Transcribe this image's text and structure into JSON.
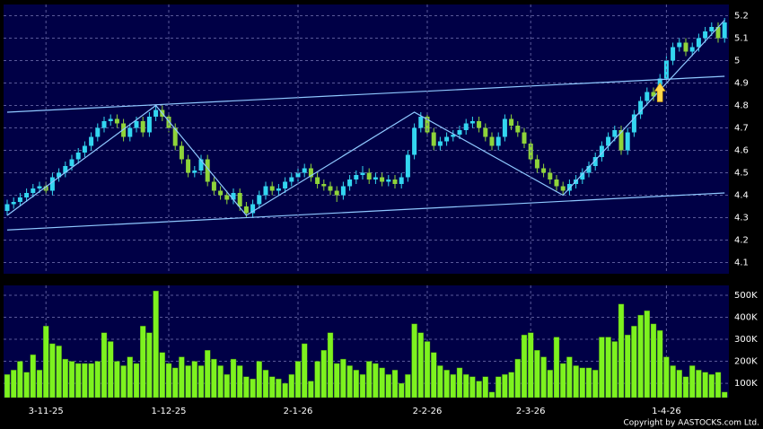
{
  "chart_data": [
    {
      "type": "candlestick",
      "up_color": "#33d6f0",
      "down_color": "#8fd43a",
      "grid": true,
      "ylim": [
        4.05,
        5.25
      ],
      "yticks": [
        4.1,
        4.2,
        4.3,
        4.4,
        4.5,
        4.6,
        4.7,
        4.8,
        4.9,
        5,
        5.1,
        5.2
      ],
      "series": [
        {
          "name": "open",
          "values": [
            4.33,
            4.36,
            4.37,
            4.39,
            4.41,
            4.43,
            4.44,
            4.42,
            4.48,
            4.5,
            4.53,
            4.56,
            4.59,
            4.62,
            4.66,
            4.7,
            4.73,
            4.74,
            4.72,
            4.66,
            4.7,
            4.73,
            4.68,
            4.75,
            4.78,
            4.75,
            4.7,
            4.62,
            4.56,
            4.5,
            4.51,
            4.56,
            4.46,
            4.42,
            4.4,
            4.38,
            4.41,
            4.35,
            4.32,
            4.36,
            4.4,
            4.44,
            4.42,
            4.43,
            4.46,
            4.48,
            4.5,
            4.52,
            4.48,
            4.45,
            4.44,
            4.42,
            4.4,
            4.44,
            4.47,
            4.49,
            4.5,
            4.47,
            4.48,
            4.46,
            4.47,
            4.45,
            4.48,
            4.58,
            4.7,
            4.75,
            4.68,
            4.62,
            4.64,
            4.66,
            4.67,
            4.69,
            4.72,
            4.73,
            4.7,
            4.66,
            4.62,
            4.66,
            4.74,
            4.71,
            4.68,
            4.63,
            4.56,
            4.52,
            4.5,
            4.47,
            4.44,
            4.42,
            4.45,
            4.47,
            4.5,
            4.53,
            4.57,
            4.62,
            4.66,
            4.69,
            4.6,
            4.68,
            4.76,
            4.82,
            4.86,
            4.84,
            4.92,
            5.0,
            5.06,
            5.08,
            5.04,
            5.06,
            5.1,
            5.13,
            5.15,
            5.1
          ]
        },
        {
          "name": "high",
          "values": [
            4.38,
            4.39,
            4.41,
            4.43,
            4.45,
            4.46,
            4.46,
            4.5,
            4.52,
            4.55,
            4.58,
            4.61,
            4.64,
            4.68,
            4.72,
            4.75,
            4.76,
            4.76,
            4.74,
            4.72,
            4.75,
            4.75,
            4.77,
            4.8,
            4.8,
            4.77,
            4.72,
            4.64,
            4.58,
            4.53,
            4.58,
            4.58,
            4.48,
            4.44,
            4.42,
            4.43,
            4.43,
            4.37,
            4.38,
            4.42,
            4.46,
            4.46,
            4.45,
            4.48,
            4.5,
            4.52,
            4.54,
            4.54,
            4.5,
            4.47,
            4.46,
            4.44,
            4.46,
            4.49,
            4.51,
            4.53,
            4.52,
            4.5,
            4.5,
            4.49,
            4.49,
            4.5,
            4.6,
            4.72,
            4.77,
            4.77,
            4.7,
            4.66,
            4.68,
            4.69,
            4.71,
            4.74,
            4.75,
            4.75,
            4.72,
            4.68,
            4.68,
            4.76,
            4.76,
            4.73,
            4.7,
            4.65,
            4.58,
            4.54,
            4.52,
            4.49,
            4.46,
            4.47,
            4.49,
            4.52,
            4.55,
            4.59,
            4.64,
            4.68,
            4.71,
            4.71,
            4.7,
            4.78,
            4.84,
            4.88,
            4.88,
            4.94,
            5.02,
            5.08,
            5.1,
            5.1,
            5.08,
            5.12,
            5.15,
            5.17,
            5.17,
            5.19
          ]
        },
        {
          "name": "low",
          "values": [
            4.31,
            4.34,
            4.35,
            4.37,
            4.39,
            4.41,
            4.4,
            4.4,
            4.46,
            4.48,
            4.51,
            4.54,
            4.57,
            4.6,
            4.64,
            4.68,
            4.71,
            4.7,
            4.64,
            4.64,
            4.68,
            4.66,
            4.66,
            4.73,
            4.73,
            4.68,
            4.6,
            4.54,
            4.48,
            4.48,
            4.49,
            4.44,
            4.4,
            4.38,
            4.36,
            4.36,
            4.33,
            4.3,
            4.3,
            4.34,
            4.38,
            4.4,
            4.4,
            4.41,
            4.44,
            4.46,
            4.48,
            4.46,
            4.43,
            4.42,
            4.4,
            4.37,
            4.38,
            4.42,
            4.45,
            4.47,
            4.45,
            4.45,
            4.44,
            4.44,
            4.43,
            4.43,
            4.46,
            4.56,
            4.68,
            4.66,
            4.6,
            4.6,
            4.62,
            4.64,
            4.65,
            4.67,
            4.7,
            4.68,
            4.64,
            4.6,
            4.6,
            4.64,
            4.69,
            4.66,
            4.61,
            4.54,
            4.5,
            4.48,
            4.45,
            4.42,
            4.4,
            4.4,
            4.43,
            4.45,
            4.48,
            4.51,
            4.55,
            4.6,
            4.64,
            4.58,
            4.58,
            4.66,
            4.74,
            4.8,
            4.82,
            4.82,
            4.9,
            4.98,
            5.04,
            5.02,
            5.02,
            5.04,
            5.08,
            5.11,
            5.08,
            5.08
          ]
        },
        {
          "name": "close",
          "values": [
            4.36,
            4.37,
            4.39,
            4.41,
            4.43,
            4.44,
            4.42,
            4.48,
            4.5,
            4.53,
            4.56,
            4.59,
            4.62,
            4.66,
            4.7,
            4.73,
            4.74,
            4.72,
            4.66,
            4.7,
            4.73,
            4.68,
            4.75,
            4.78,
            4.75,
            4.7,
            4.62,
            4.56,
            4.5,
            4.51,
            4.56,
            4.46,
            4.42,
            4.4,
            4.38,
            4.41,
            4.35,
            4.32,
            4.36,
            4.4,
            4.44,
            4.42,
            4.43,
            4.46,
            4.48,
            4.5,
            4.52,
            4.48,
            4.45,
            4.44,
            4.42,
            4.4,
            4.44,
            4.47,
            4.49,
            4.5,
            4.47,
            4.48,
            4.46,
            4.47,
            4.45,
            4.48,
            4.58,
            4.7,
            4.75,
            4.68,
            4.62,
            4.64,
            4.66,
            4.67,
            4.69,
            4.72,
            4.73,
            4.7,
            4.66,
            4.62,
            4.66,
            4.74,
            4.71,
            4.68,
            4.63,
            4.56,
            4.52,
            4.5,
            4.47,
            4.44,
            4.42,
            4.45,
            4.47,
            4.5,
            4.53,
            4.57,
            4.62,
            4.66,
            4.69,
            4.6,
            4.68,
            4.76,
            4.82,
            4.86,
            4.84,
            4.92,
            5.0,
            5.06,
            5.08,
            5.04,
            5.06,
            5.1,
            5.13,
            5.15,
            5.1,
            5.17
          ]
        }
      ],
      "trend_lines": [
        {
          "color": "#8fc8ff",
          "x": [
            0,
            111
          ],
          "values": [
            4.77,
            4.93
          ]
        },
        {
          "color": "#8fc8ff",
          "x": [
            0,
            111
          ],
          "values": [
            4.245,
            4.41
          ]
        },
        {
          "color": "#8fc8ff",
          "x": [
            0,
            23,
            37,
            63,
            86,
            111
          ],
          "values": [
            4.31,
            4.8,
            4.31,
            4.77,
            4.4,
            5.18
          ]
        }
      ],
      "arrow": {
        "x": 101,
        "value": 4.9,
        "color": "#ffd84a"
      }
    },
    {
      "type": "bar",
      "color": "#7df21f",
      "grid": true,
      "ylim": [
        35000,
        545000
      ],
      "yticks": [
        {
          "value": 100000,
          "label": "100K"
        },
        {
          "value": 200000,
          "label": "200K"
        },
        {
          "value": 300000,
          "label": "300K"
        },
        {
          "value": 400000,
          "label": "400K"
        },
        {
          "value": 500000,
          "label": "500K"
        }
      ],
      "categories": [
        null,
        null,
        null,
        null,
        null,
        null,
        "3-11-25",
        null,
        null,
        null,
        null,
        null,
        null,
        null,
        null,
        null,
        null,
        null,
        null,
        null,
        null,
        null,
        null,
        null,
        null,
        "1-12-25",
        null,
        null,
        null,
        null,
        null,
        null,
        null,
        null,
        null,
        null,
        null,
        null,
        null,
        null,
        null,
        null,
        null,
        null,
        null,
        "2-1-26",
        null,
        null,
        null,
        null,
        null,
        null,
        null,
        null,
        null,
        null,
        null,
        null,
        null,
        null,
        null,
        null,
        null,
        null,
        null,
        "2-2-26",
        null,
        null,
        null,
        null,
        null,
        null,
        null,
        null,
        null,
        null,
        null,
        null,
        null,
        null,
        null,
        "2-3-26",
        null,
        null,
        null,
        null,
        null,
        null,
        null,
        null,
        null,
        null,
        null,
        null,
        null,
        null,
        null,
        null,
        null,
        null,
        null,
        null,
        "1-4-26",
        null,
        null,
        null,
        null,
        null,
        null,
        null,
        null,
        null
      ],
      "values": [
        140000,
        160000,
        200000,
        150000,
        230000,
        160000,
        360000,
        280000,
        270000,
        210000,
        200000,
        190000,
        190000,
        190000,
        200000,
        330000,
        290000,
        200000,
        180000,
        220000,
        190000,
        360000,
        330000,
        520000,
        240000,
        190000,
        170000,
        220000,
        180000,
        200000,
        180000,
        250000,
        210000,
        180000,
        140000,
        210000,
        180000,
        130000,
        120000,
        200000,
        160000,
        130000,
        120000,
        100000,
        140000,
        200000,
        280000,
        110000,
        200000,
        250000,
        330000,
        190000,
        210000,
        180000,
        160000,
        140000,
        200000,
        190000,
        170000,
        140000,
        160000,
        100000,
        140000,
        370000,
        330000,
        290000,
        240000,
        180000,
        160000,
        140000,
        170000,
        140000,
        130000,
        110000,
        130000,
        60000,
        130000,
        140000,
        150000,
        210000,
        320000,
        330000,
        250000,
        220000,
        160000,
        310000,
        190000,
        220000,
        180000,
        170000,
        170000,
        160000,
        310000,
        310000,
        290000,
        460000,
        320000,
        360000,
        410000,
        430000,
        370000,
        340000,
        220000,
        180000,
        160000,
        130000,
        180000,
        160000,
        150000,
        140000,
        150000,
        60000
      ]
    }
  ],
  "copyright": "Copyright by AASTOCKS.com Ltd."
}
